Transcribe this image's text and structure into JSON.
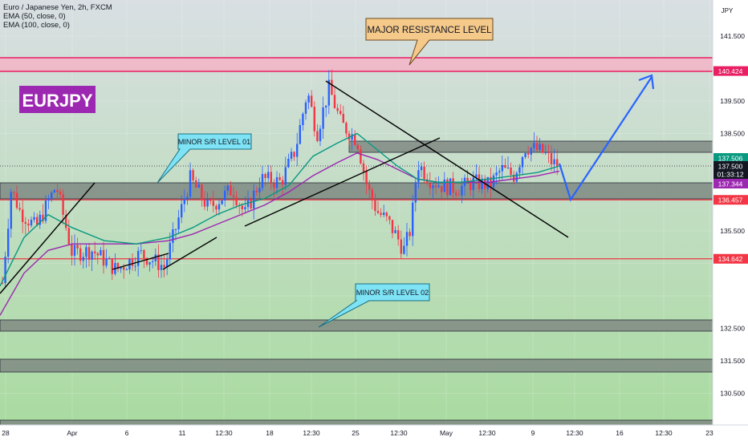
{
  "header": {
    "symbol_line": "Euro / Japanese Yen, 2h, FXCM",
    "indicator_1": "EMA (50, close, 0)",
    "indicator_2": "EMA (100, close, 0)",
    "currency": "JPY"
  },
  "colors": {
    "bg_top": "#d9dfe3",
    "bg_bottom": "#a9dba0",
    "resistance_fill": "#f2b6c6",
    "resistance_line": "#e91e63",
    "zone_fill": "#7f8a82",
    "red_line": "#f23645",
    "up_candle": "#2962ff",
    "down_candle": "#f23645",
    "ema50": "#089981",
    "ema100": "#9c27b0",
    "trendline": "#000000",
    "projection": "#2962ff",
    "badge": "#9c27b0",
    "callout_orange": "#f5c98a",
    "callout_cyan": "#7ee3f5"
  },
  "chart_data": {
    "type": "candlestick",
    "title": "EURJPY",
    "symbol": "Euro / Japanese Yen",
    "timeframe": "2h",
    "source": "FXCM",
    "ylim": [
      130,
      142.5
    ],
    "y_ticks": [
      "141.500",
      "139.500",
      "138.500",
      "135.500",
      "132.500",
      "131.500",
      "130.500"
    ],
    "x_ticks": [
      "28",
      "Apr",
      "6",
      "11",
      "12:30",
      "18",
      "12:30",
      "25",
      "12:30",
      "May",
      "12:30",
      "9",
      "12:30",
      "16",
      "12:30",
      "23"
    ],
    "price_labels": [
      {
        "value": 140.424,
        "text": "140.424",
        "color": "#e91e63"
      },
      {
        "value": 137.506,
        "text": "137.506",
        "color": "#089981"
      },
      {
        "value": 137.5,
        "text": "137.500",
        "color": "#131722"
      },
      {
        "value": 137.25,
        "text": "01:33:12",
        "color": "#131722"
      },
      {
        "value": 137.344,
        "text": "137.344",
        "color": "#9c27b0"
      },
      {
        "value": 136.457,
        "text": "136.457",
        "color": "#f23645"
      },
      {
        "value": 134.642,
        "text": "134.642",
        "color": "#f23645"
      }
    ],
    "levels": [
      {
        "name": "major-resistance",
        "value": 140.424
      },
      {
        "name": "support-1",
        "value": 136.457
      },
      {
        "name": "support-2",
        "value": 134.642
      }
    ],
    "annotations": {
      "badge": "EURJPY",
      "major_resistance": "MAJOR RESISTANCE LEVEL",
      "minor_sr_1": "MINOR S/R LEVEL 01",
      "minor_sr_2": "MINOR S/R LEVEL 02"
    },
    "ema50": [
      [
        0,
        133.8
      ],
      [
        30,
        135.3
      ],
      [
        60,
        136.0
      ],
      [
        90,
        135.6
      ],
      [
        130,
        135.2
      ],
      [
        170,
        135.1
      ],
      [
        210,
        135.3
      ],
      [
        240,
        135.6
      ],
      [
        270,
        136.0
      ],
      [
        300,
        136.3
      ],
      [
        330,
        136.5
      ],
      [
        360,
        136.9
      ],
      [
        390,
        137.8
      ],
      [
        420,
        138.2
      ],
      [
        445,
        138.5
      ],
      [
        470,
        138.0
      ],
      [
        495,
        137.5
      ],
      [
        520,
        137.1
      ],
      [
        545,
        137.0
      ],
      [
        575,
        137.0
      ],
      [
        610,
        137.1
      ],
      [
        640,
        137.2
      ],
      [
        670,
        137.3
      ],
      [
        697,
        137.5
      ]
    ],
    "ema100": [
      [
        0,
        132.9
      ],
      [
        30,
        134.2
      ],
      [
        60,
        134.9
      ],
      [
        90,
        135.1
      ],
      [
        130,
        135.1
      ],
      [
        170,
        135.1
      ],
      [
        210,
        135.2
      ],
      [
        240,
        135.4
      ],
      [
        270,
        135.7
      ],
      [
        300,
        136.0
      ],
      [
        330,
        136.3
      ],
      [
        360,
        136.7
      ],
      [
        390,
        137.2
      ],
      [
        420,
        137.6
      ],
      [
        445,
        137.9
      ],
      [
        470,
        137.7
      ],
      [
        495,
        137.4
      ],
      [
        520,
        137.1
      ],
      [
        545,
        137.0
      ],
      [
        575,
        137.0
      ],
      [
        610,
        137.0
      ],
      [
        640,
        137.1
      ],
      [
        670,
        137.2
      ],
      [
        697,
        137.34
      ]
    ]
  }
}
